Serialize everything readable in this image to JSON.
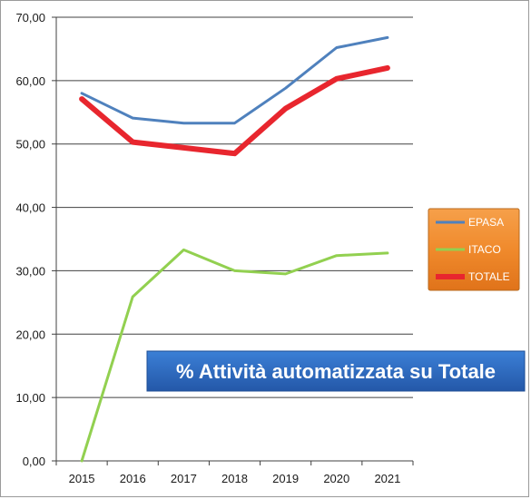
{
  "chart_data": {
    "type": "line",
    "title": "% Attività automatizzata su Totale",
    "xlabel": "",
    "ylabel": "",
    "categories": [
      "2015",
      "2016",
      "2017",
      "2018",
      "2019",
      "2020",
      "2021"
    ],
    "ylim": [
      0,
      70
    ],
    "yticks": [
      "0,00",
      "10,00",
      "20,00",
      "30,00",
      "40,00",
      "50,00",
      "60,00",
      "70,00"
    ],
    "grid": true,
    "legend_position": "right",
    "series": [
      {
        "name": "EPASA",
        "color": "#4f81bd",
        "values": [
          58.0,
          54.1,
          53.3,
          53.3,
          58.8,
          65.2,
          66.8
        ]
      },
      {
        "name": "ITACO",
        "color": "#92d050",
        "values": [
          0.0,
          25.9,
          33.3,
          30.0,
          29.5,
          32.4,
          32.8
        ]
      },
      {
        "name": "TOTALE",
        "color": "#e8262e",
        "values": [
          57.1,
          50.3,
          49.4,
          48.5,
          55.6,
          60.3,
          62.0
        ]
      }
    ],
    "legend_background": "#f08a2c",
    "title_background": "#2f6dc0"
  }
}
